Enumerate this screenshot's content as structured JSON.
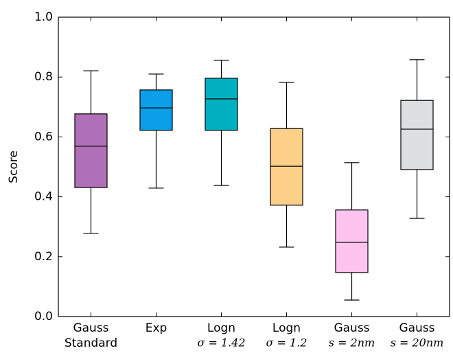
{
  "chart_data": {
    "type": "box",
    "y_label": "Score",
    "categories": [
      [
        "Gauss",
        "Standard"
      ],
      [
        "Exp"
      ],
      [
        "Logn",
        "σ = 1.42"
      ],
      [
        "Logn",
        "σ = 1.2"
      ],
      [
        "Gauss",
        "s = 2nm"
      ],
      [
        "Gauss",
        "s = 20nm"
      ]
    ],
    "boxes": [
      {
        "color": "#b070b8",
        "whisker_low": 0.278,
        "q1": 0.431,
        "median": 0.569,
        "q3": 0.677,
        "whisker_high": 0.821
      },
      {
        "color": "#0a9fe8",
        "whisker_low": 0.429,
        "q1": 0.622,
        "median": 0.697,
        "q3": 0.757,
        "whisker_high": 0.81
      },
      {
        "color": "#00b0c0",
        "whisker_low": 0.438,
        "q1": 0.622,
        "median": 0.727,
        "q3": 0.796,
        "whisker_high": 0.856
      },
      {
        "color": "#fdd08a",
        "whisker_low": 0.232,
        "q1": 0.372,
        "median": 0.502,
        "q3": 0.628,
        "whisker_high": 0.782
      },
      {
        "color": "#fcc4ef",
        "whisker_low": 0.055,
        "q1": 0.147,
        "median": 0.248,
        "q3": 0.356,
        "whisker_high": 0.514
      },
      {
        "color": "#dcdfe0",
        "whisker_low": 0.328,
        "q1": 0.491,
        "median": 0.626,
        "q3": 0.722,
        "whisker_high": 0.858
      }
    ],
    "ylim": [
      0,
      1
    ],
    "yticks": [
      {
        "value": 0,
        "label": "0.0"
      },
      0.2,
      0.4,
      0.6,
      0.8,
      {
        "value": 1,
        "label": "1.0"
      }
    ]
  }
}
